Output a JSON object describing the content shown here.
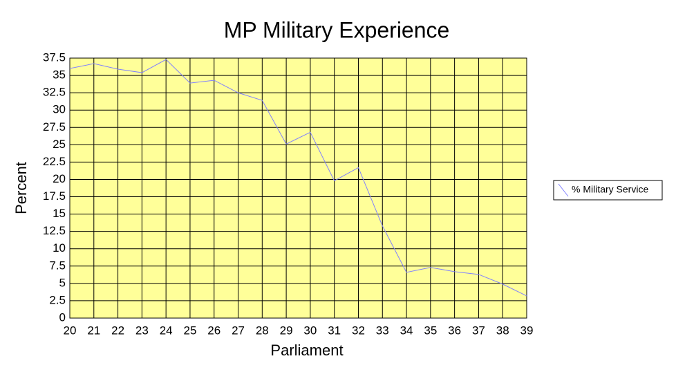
{
  "chart_data": {
    "type": "line",
    "title": "MP Military Experience",
    "x_label": "Parliament",
    "y_label": "Percent",
    "x": [
      20,
      21,
      22,
      23,
      24,
      25,
      26,
      27,
      28,
      29,
      30,
      31,
      32,
      33,
      34,
      35,
      36,
      37,
      38,
      39
    ],
    "series": [
      {
        "name": "% Military Service",
        "color": "#8080ff",
        "values": [
          36,
          36.7,
          35.9,
          35.4,
          37.3,
          33.9,
          34.3,
          32.5,
          31.4,
          25.1,
          26.8,
          19.8,
          21.7,
          13.3,
          6.6,
          7.3,
          6.7,
          6.3,
          4.9,
          3.2
        ]
      }
    ],
    "xlim": [
      20,
      39
    ],
    "xticks": [
      20,
      21,
      22,
      23,
      24,
      25,
      26,
      27,
      28,
      29,
      30,
      31,
      32,
      33,
      34,
      35,
      36,
      37,
      38,
      39
    ],
    "ylim": [
      0,
      37.5
    ],
    "yticks": [
      0,
      2.5,
      5,
      7.5,
      10,
      12.5,
      15,
      17.5,
      20,
      22.5,
      25,
      27.5,
      30,
      32.5,
      35,
      37.5
    ],
    "grid": true,
    "legend": "right",
    "background": "#ffff99"
  }
}
